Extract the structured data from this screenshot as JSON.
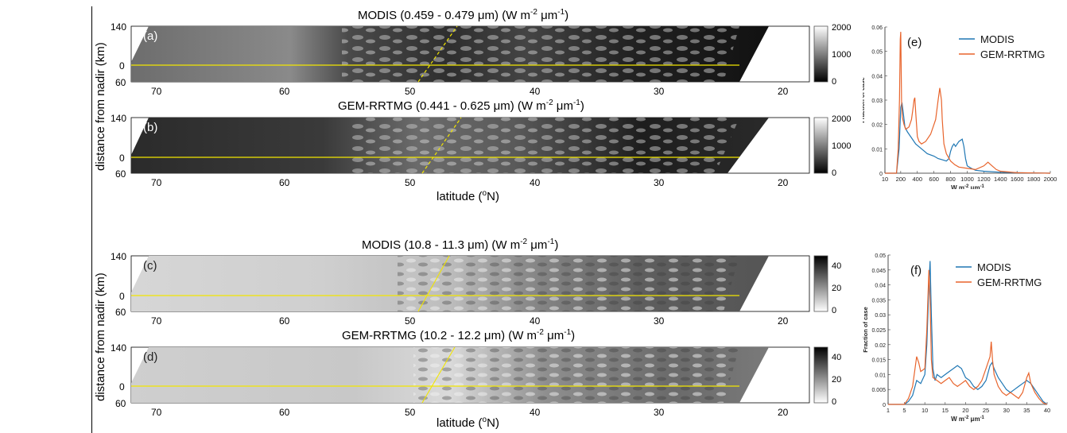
{
  "figure": {
    "ylabel": "distance from nadir (km)",
    "xlabel": "latitude (",
    "xlabel_unit": "o",
    "xlabel_end": "N)",
    "lat_ticks": [
      "70",
      "60",
      "50",
      "40",
      "30",
      "20"
    ],
    "y_ticks": [
      "140",
      "0",
      "60"
    ]
  },
  "panels": [
    {
      "id": "a",
      "label": "(a)",
      "title": "MODIS (0.459 - 0.479 μm) (W m",
      "cb_ticks": [
        "2000",
        "1000",
        "0"
      ],
      "cb_dark_bottom": true
    },
    {
      "id": "b",
      "label": "(b)",
      "title": "GEM-RRTMG (0.441 - 0.625 μm) (W m",
      "cb_ticks": [
        "2000",
        "1000",
        "0"
      ],
      "cb_dark_bottom": true
    },
    {
      "id": "c",
      "label": "(c)",
      "title": "MODIS (10.8 - 11.3 μm) (W m",
      "cb_ticks": [
        "40",
        "20",
        "0"
      ],
      "cb_dark_bottom": false
    },
    {
      "id": "d",
      "label": "(d)",
      "title": "GEM-RRTMG (10.2 - 12.2 μm) (W m",
      "cb_ticks": [
        "40",
        "20",
        "0"
      ],
      "cb_dark_bottom": false
    }
  ],
  "title_units": {
    "sup1": "-2",
    "mid": " μm",
    "sup2": "-1",
    "end": ")"
  },
  "chart_data": [
    {
      "type": "line",
      "panel_label": "(e)",
      "ylabel": "Fraction of case",
      "xlabel": "W m-2 μm-1",
      "xlabel_parts": {
        "a": "W m",
        "b": "-2",
        "c": " μm",
        "d": "-1"
      },
      "xlim": [
        10,
        2000
      ],
      "ylim": [
        0,
        0.06
      ],
      "x_ticks": [
        "10",
        "200",
        "400",
        "600",
        "800",
        "1000",
        "1200",
        "1400",
        "1600",
        "1800",
        "2000"
      ],
      "y_ticks": [
        "0",
        "0.01",
        "0.02",
        "0.03",
        "0.04",
        "0.05",
        "0.06"
      ],
      "legend_position": "top-right",
      "series": [
        {
          "name": "MODIS",
          "color": "#1f77b4",
          "x": [
            10,
            150,
            180,
            200,
            215,
            230,
            250,
            280,
            320,
            380,
            450,
            520,
            600,
            650,
            700,
            750,
            780,
            800,
            820,
            840,
            860,
            880,
            900,
            940,
            960,
            980,
            1000,
            1050,
            1100,
            1200,
            1400,
            1600,
            1800,
            2000
          ],
          "y": [
            0,
            0,
            0.01,
            0.027,
            0.029,
            0.025,
            0.019,
            0.017,
            0.015,
            0.012,
            0.01,
            0.008,
            0.007,
            0.006,
            0.0055,
            0.005,
            0.006,
            0.009,
            0.011,
            0.012,
            0.011,
            0.012,
            0.013,
            0.014,
            0.011,
            0.006,
            0.003,
            0.002,
            0.0012,
            0.0008,
            0.0004,
            0.0002,
            0.0001,
            0
          ]
        },
        {
          "name": "GEM-RRTMG",
          "color": "#e8642c",
          "x": [
            10,
            150,
            170,
            185,
            195,
            200,
            210,
            220,
            240,
            260,
            300,
            330,
            350,
            360,
            370,
            380,
            400,
            420,
            450,
            500,
            560,
            620,
            650,
            670,
            690,
            700,
            720,
            750,
            800,
            850,
            900,
            1000,
            1100,
            1200,
            1250,
            1300,
            1350,
            1400,
            1600,
            1800,
            2000
          ],
          "y": [
            0,
            0,
            0.01,
            0.03,
            0.055,
            0.058,
            0.03,
            0.023,
            0.02,
            0.018,
            0.019,
            0.022,
            0.027,
            0.03,
            0.031,
            0.025,
            0.015,
            0.013,
            0.012,
            0.013,
            0.016,
            0.022,
            0.03,
            0.035,
            0.03,
            0.022,
            0.012,
            0.008,
            0.005,
            0.0035,
            0.0025,
            0.002,
            0.0015,
            0.003,
            0.0045,
            0.003,
            0.0015,
            0.0008,
            0.0002,
            0.0001,
            0
          ]
        }
      ]
    },
    {
      "type": "line",
      "panel_label": "(f)",
      "ylabel": "Fraction of case",
      "xlabel": "W m-2 μm-1",
      "xlabel_parts": {
        "a": "W m",
        "b": "-2",
        "c": " μm",
        "d": "-1"
      },
      "xlim": [
        1,
        40
      ],
      "ylim": [
        0,
        0.05
      ],
      "x_ticks": [
        "1",
        "5",
        "10",
        "15",
        "20",
        "25",
        "30",
        "35",
        "40"
      ],
      "y_ticks": [
        "0",
        "0.005",
        "0.01",
        "0.015",
        "0.02",
        "0.025",
        "0.03",
        "0.035",
        "0.04",
        "0.045",
        "0.05"
      ],
      "legend_position": "top-right",
      "series": [
        {
          "name": "MODIS",
          "color": "#1f77b4",
          "x": [
            1,
            5,
            6,
            7,
            8,
            9,
            10,
            10.5,
            11,
            11.3,
            11.6,
            12,
            12.5,
            13,
            14,
            15,
            16,
            17,
            18,
            19,
            20,
            21,
            22,
            23,
            24,
            25,
            26,
            26.5,
            27,
            28,
            29,
            30,
            31,
            32,
            33,
            34,
            35,
            36,
            37,
            38,
            39,
            40
          ],
          "y": [
            0,
            0,
            0.001,
            0.003,
            0.008,
            0.007,
            0.01,
            0.02,
            0.04,
            0.048,
            0.03,
            0.012,
            0.008,
            0.01,
            0.009,
            0.01,
            0.011,
            0.012,
            0.013,
            0.012,
            0.009,
            0.008,
            0.006,
            0.005,
            0.006,
            0.008,
            0.013,
            0.014,
            0.012,
            0.009,
            0.007,
            0.005,
            0.004,
            0.005,
            0.006,
            0.007,
            0.008,
            0.007,
            0.005,
            0.003,
            0.001,
            0
          ]
        },
        {
          "name": "GEM-RRTMG",
          "color": "#e8642c",
          "x": [
            1,
            5,
            6,
            7,
            8,
            8.5,
            9,
            10,
            10.5,
            11,
            11.3,
            11.6,
            12,
            13,
            14,
            15,
            16,
            17,
            18,
            19,
            20,
            21,
            22,
            23,
            24,
            25,
            26,
            26.3,
            26.6,
            27,
            28,
            29,
            30,
            31,
            32,
            33,
            34,
            35,
            35.5,
            36,
            37,
            38,
            39,
            40
          ],
          "y": [
            0,
            0,
            0.002,
            0.006,
            0.016,
            0.014,
            0.011,
            0.012,
            0.025,
            0.045,
            0.035,
            0.015,
            0.009,
            0.008,
            0.007,
            0.008,
            0.009,
            0.007,
            0.006,
            0.007,
            0.008,
            0.006,
            0.005,
            0.006,
            0.008,
            0.012,
            0.016,
            0.021,
            0.015,
            0.01,
            0.006,
            0.004,
            0.003,
            0.004,
            0.003,
            0.002,
            0.004,
            0.009,
            0.0105,
            0.007,
            0.004,
            0.002,
            0.0005,
            0
          ]
        }
      ]
    }
  ]
}
